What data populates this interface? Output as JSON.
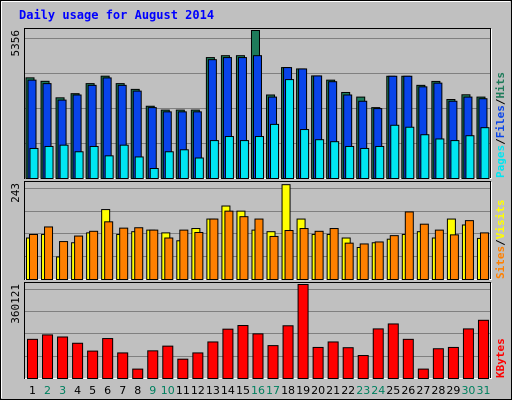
{
  "title": "Daily usage for August 2014",
  "colors": {
    "background": "#c0c0c0",
    "plot_bg": "#c0c0c0",
    "title_text": "#0000ff",
    "hits": "#1e7b5a",
    "files": "#0844ea",
    "pages": "#00e6f2",
    "visits": "#ffff00",
    "sites": "#ff8000",
    "kbytes": "#ff0000",
    "weekend_label": "#00805f",
    "weekday_label": "#000000"
  },
  "chart_data": [
    {
      "type": "bar",
      "panel": "hits-files-pages",
      "y_max_label": "5356",
      "legend": [
        "Pages",
        "/",
        "Files",
        "/",
        "Hits"
      ],
      "ylim": [
        0,
        5356
      ],
      "grid": true,
      "categories": [
        "1",
        "2",
        "3",
        "4",
        "5",
        "6",
        "7",
        "8",
        "9",
        "10",
        "11",
        "12",
        "13",
        "14",
        "15",
        "16",
        "17",
        "18",
        "19",
        "20",
        "21",
        "22",
        "23",
        "24",
        "25",
        "26",
        "27",
        "28",
        "29",
        "30",
        "31"
      ],
      "weekend_days": [
        "2",
        "3",
        "9",
        "10",
        "16",
        "17",
        "23",
        "24",
        "30",
        "31"
      ],
      "series": [
        {
          "name": "Hits",
          "values": [
            3643,
            3517,
            2920,
            3070,
            3434,
            3703,
            3434,
            3225,
            2615,
            2475,
            2475,
            2475,
            4376,
            4445,
            4445,
            5356,
            3022,
            4014,
            3965,
            3712,
            3559,
            3113,
            2946,
            2565,
            3700,
            3700,
            3371,
            3513,
            2859,
            3030,
            2946
          ]
        },
        {
          "name": "Files",
          "values": [
            3560,
            3434,
            2837,
            3022,
            3371,
            3640,
            3371,
            3162,
            2565,
            2412,
            2412,
            2412,
            4300,
            4376,
            4376,
            4445,
            2946,
            4014,
            3965,
            3712,
            3503,
            3022,
            2795,
            2530,
            3700,
            3700,
            3317,
            3451,
            2795,
            2946,
            2887
          ]
        },
        {
          "name": "Pages",
          "values": [
            1087,
            1159,
            1206,
            967,
            1159,
            820,
            1206,
            780,
            362,
            967,
            1039,
            742,
            1372,
            1519,
            1372,
            1519,
            1958,
            3579,
            1772,
            1404,
            1332,
            1159,
            1087,
            1159,
            1926,
            1855,
            1584,
            1431,
            1372,
            1548,
            1839
          ]
        }
      ]
    },
    {
      "type": "bar",
      "panel": "visits-sites",
      "y_max_label": "243",
      "legend": [
        "Sites",
        "/",
        "Visits"
      ],
      "ylim": [
        0,
        243
      ],
      "grid": true,
      "series": [
        {
          "name": "Visits",
          "values": [
            105,
            114,
            57,
            93,
            118,
            177,
            114,
            121,
            125,
            118,
            98,
            129,
            153,
            186,
            173,
            125,
            121,
            240,
            153,
            114,
            114,
            105,
            81,
            93,
            102,
            114,
            121,
            105,
            153,
            138,
            104
          ]
        },
        {
          "name": "Sites",
          "values": [
            114,
            133,
            96,
            110,
            122,
            146,
            130,
            131,
            125,
            105,
            125,
            119,
            153,
            173,
            159,
            153,
            109,
            124,
            129,
            122,
            129,
            92,
            90,
            95,
            111,
            171,
            140,
            125,
            113,
            149,
            118
          ]
        }
      ]
    },
    {
      "type": "bar",
      "panel": "kbytes",
      "y_max_label": "360121",
      "legend": [
        "KBytes"
      ],
      "ylim": [
        0,
        360121
      ],
      "grid": true,
      "series": [
        {
          "name": "KBytes",
          "values": [
            150000,
            167000,
            159000,
            135000,
            105000,
            153000,
            98000,
            36000,
            106000,
            124000,
            74000,
            98000,
            140000,
            189000,
            203000,
            171000,
            126000,
            202000,
            360121,
            119000,
            140000,
            118000,
            88000,
            190000,
            209000,
            150000,
            36000,
            114000,
            119000,
            190000,
            223000
          ]
        }
      ]
    }
  ]
}
